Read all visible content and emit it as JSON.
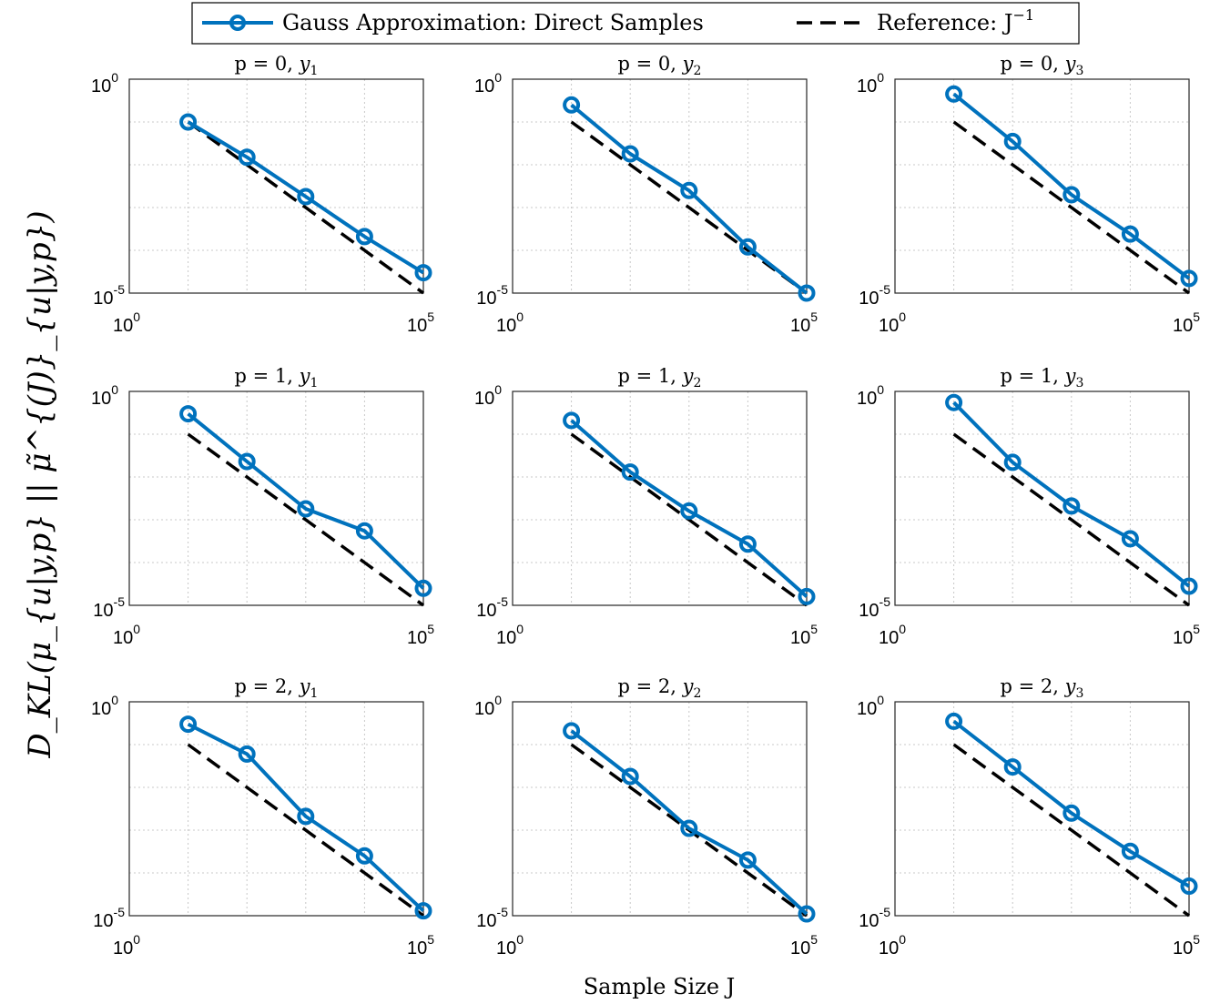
{
  "chart_data": {
    "type": "line",
    "layout": "3x3 grid of log-log subplots",
    "xlabel": "Sample Size J",
    "ylabel": "D_KL(μ_{u|y,p} || μ̃^{(J)}_{u|y,p})",
    "xscale": "log",
    "yscale": "log",
    "xlim": [
      1,
      100000
    ],
    "ylim": [
      1e-05,
      1
    ],
    "xticks": [
      {
        "base": "10",
        "exp": "0"
      },
      {
        "base": "10",
        "exp": "5"
      }
    ],
    "yticks": [
      {
        "base": "10",
        "exp": "0"
      },
      {
        "base": "10",
        "exp": "-5"
      }
    ],
    "grid": true,
    "legend": {
      "position": "top-center",
      "entries": [
        {
          "label": "Gauss Approximation: Direct Samples",
          "style": "solid-circle-markers",
          "color": "#0072BD"
        },
        {
          "label": "Reference: J",
          "superscript": "−1",
          "style": "dashed",
          "color": "#000000"
        }
      ]
    },
    "x": [
      10,
      100,
      1000,
      10000,
      100000
    ],
    "subplots": [
      {
        "title_prefix": "p = 0, ",
        "title_var": "y",
        "title_sub": "1",
        "series": [
          {
            "name": "Gauss Approximation: Direct Samples",
            "values": [
              0.1,
              0.015,
              0.0018,
              0.00021,
              3e-05
            ]
          },
          {
            "name": "Reference: J^-1",
            "values": [
              0.1,
              0.01,
              0.001,
              0.0001,
              1e-05
            ]
          }
        ]
      },
      {
        "title_prefix": "p = 0, ",
        "title_var": "y",
        "title_sub": "2",
        "series": [
          {
            "name": "Gauss Approximation: Direct Samples",
            "values": [
              0.25,
              0.018,
              0.0025,
              0.00012,
              1e-05
            ]
          },
          {
            "name": "Reference: J^-1",
            "values": [
              0.1,
              0.01,
              0.001,
              0.0001,
              1e-05
            ]
          }
        ]
      },
      {
        "title_prefix": "p = 0, ",
        "title_var": "y",
        "title_sub": "3",
        "series": [
          {
            "name": "Gauss Approximation: Direct Samples",
            "values": [
              0.45,
              0.035,
              0.002,
              0.00024,
              2.2e-05
            ]
          },
          {
            "name": "Reference: J^-1",
            "values": [
              0.1,
              0.01,
              0.001,
              0.0001,
              1e-05
            ]
          }
        ]
      },
      {
        "title_prefix": "p = 1, ",
        "title_var": "y",
        "title_sub": "1",
        "series": [
          {
            "name": "Gauss Approximation: Direct Samples",
            "values": [
              0.3,
              0.023,
              0.0018,
              0.00055,
              2.5e-05
            ]
          },
          {
            "name": "Reference: J^-1",
            "values": [
              0.1,
              0.01,
              0.001,
              0.0001,
              1e-05
            ]
          }
        ]
      },
      {
        "title_prefix": "p = 1, ",
        "title_var": "y",
        "title_sub": "2",
        "series": [
          {
            "name": "Gauss Approximation: Direct Samples",
            "values": [
              0.21,
              0.013,
              0.0016,
              0.00027,
              1.6e-05
            ]
          },
          {
            "name": "Reference: J^-1",
            "values": [
              0.1,
              0.01,
              0.001,
              0.0001,
              1e-05
            ]
          }
        ]
      },
      {
        "title_prefix": "p = 1, ",
        "title_var": "y",
        "title_sub": "3",
        "series": [
          {
            "name": "Gauss Approximation: Direct Samples",
            "values": [
              0.55,
              0.022,
              0.0021,
              0.00036,
              2.8e-05
            ]
          },
          {
            "name": "Reference: J^-1",
            "values": [
              0.1,
              0.01,
              0.001,
              0.0001,
              1e-05
            ]
          }
        ]
      },
      {
        "title_prefix": "p = 2, ",
        "title_var": "y",
        "title_sub": "1",
        "series": [
          {
            "name": "Gauss Approximation: Direct Samples",
            "values": [
              0.3,
              0.06,
              0.0021,
              0.00025,
              1.3e-05
            ]
          },
          {
            "name": "Reference: J^-1",
            "values": [
              0.1,
              0.01,
              0.001,
              0.0001,
              1e-05
            ]
          }
        ]
      },
      {
        "title_prefix": "p = 2, ",
        "title_var": "y",
        "title_sub": "2",
        "series": [
          {
            "name": "Gauss Approximation: Direct Samples",
            "values": [
              0.21,
              0.018,
              0.0011,
              0.0002,
              1.1e-05
            ]
          },
          {
            "name": "Reference: J^-1",
            "values": [
              0.1,
              0.01,
              0.001,
              0.0001,
              1e-05
            ]
          }
        ]
      },
      {
        "title_prefix": "p = 2, ",
        "title_var": "y",
        "title_sub": "3",
        "series": [
          {
            "name": "Gauss Approximation: Direct Samples",
            "values": [
              0.35,
              0.03,
              0.0025,
              0.00032,
              4.9e-05
            ]
          },
          {
            "name": "Reference: J^-1",
            "values": [
              0.1,
              0.01,
              0.001,
              0.0001,
              1e-05
            ]
          }
        ]
      }
    ]
  }
}
